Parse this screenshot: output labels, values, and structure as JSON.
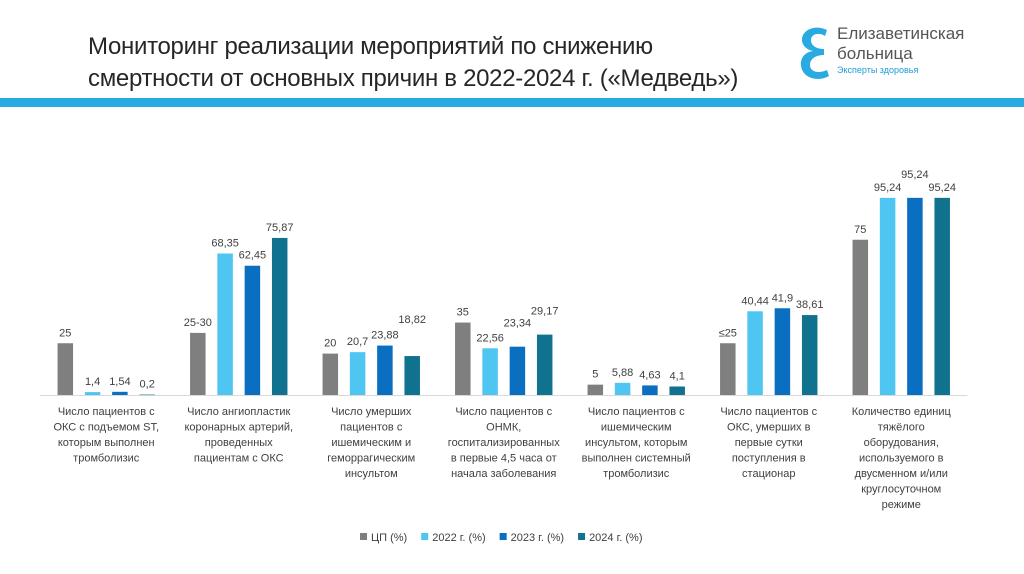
{
  "header": {
    "title_line1": "Мониторинг реализации мероприятий по снижению",
    "title_line2": "смертности от основных причин в 2022-2024 г. («Медведь»)",
    "accent_color": "#29abe2"
  },
  "logo": {
    "line1": "Елизаветинская",
    "line2": "больница",
    "tagline": "Эксперты здоровья"
  },
  "chart_data": {
    "type": "bar",
    "title": "",
    "xlabel": "",
    "ylabel": "",
    "ylim": [
      0,
      100
    ],
    "grid": false,
    "legend_position": "bottom",
    "categories": [
      [
        "Число пациентов с",
        "ОКС с подъемом ST,",
        "которым выполнен",
        "тромболизис"
      ],
      [
        "Число ангиопластик",
        "коронарных артерий,",
        "проведенных",
        "пациентам с ОКС"
      ],
      [
        "Число умерших",
        "пациентов с",
        "ишемическим и",
        "геморрагическим",
        "инсультом"
      ],
      [
        "Число пациентов с",
        "ОНМК,",
        "госпитализированных",
        "в первые 4,5 часа от",
        "начала заболевания"
      ],
      [
        "Число пациентов с",
        "ишемическим",
        "инсультом, которым",
        "выполнен системный",
        "тромболизис"
      ],
      [
        "Число пациентов с",
        "ОКС, умерших в",
        "первые сутки",
        "поступления в",
        "стационар"
      ],
      [
        "Количество единиц",
        "тяжёлого",
        "оборудования,",
        "используемого в",
        "двусменном и/или",
        "круглосуточном",
        "режиме"
      ]
    ],
    "series": [
      {
        "name": "ЦП (%)",
        "color": "#7f7f7f",
        "values": [
          25,
          30,
          20,
          35,
          5,
          25,
          75
        ],
        "labels": [
          "25",
          "25-30",
          "20",
          "35",
          "5",
          "≤25",
          "75"
        ]
      },
      {
        "name": "2022 г. (%)",
        "color": "#4fc6f2",
        "values": [
          1.4,
          68.35,
          20.7,
          22.56,
          5.88,
          40.44,
          95.24
        ],
        "labels": [
          "1,4",
          "68,35",
          "20,7",
          "22,56",
          "5,88",
          "40,44",
          "95,24"
        ]
      },
      {
        "name": "2023 г. (%)",
        "color": "#0a6fc0",
        "values": [
          1.54,
          62.45,
          23.88,
          23.34,
          4.63,
          41.9,
          95.24
        ],
        "labels": [
          "1,54",
          "62,45",
          "23,88",
          "23,34",
          "4,63",
          "41,9",
          "95,24"
        ]
      },
      {
        "name": "2024 г. (%)",
        "color": "#10728f",
        "values": [
          0.2,
          75.87,
          18.82,
          29.17,
          4.1,
          38.61,
          95.24
        ],
        "labels": [
          "0,2",
          "75,87",
          "18,82",
          "29,17",
          "4,1",
          "38,61",
          "95,24"
        ]
      }
    ]
  }
}
